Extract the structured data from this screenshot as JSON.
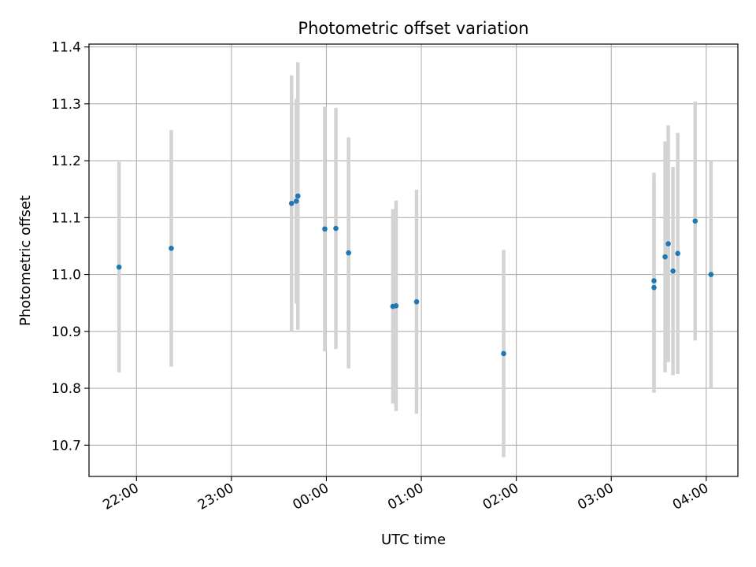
{
  "chart_data": {
    "type": "scatter",
    "title": "Photometric offset variation",
    "xlabel": "UTC time",
    "ylabel": "Photometric offset",
    "x_axis_kind": "time",
    "grid": true,
    "xlim": [
      "21:30",
      "04:20"
    ],
    "ylim": [
      10.645,
      11.405
    ],
    "x_ticks": [
      "22:00",
      "23:00",
      "00:00",
      "01:00",
      "02:00",
      "03:00",
      "04:00"
    ],
    "y_ticks": [
      "10.7",
      "10.8",
      "10.9",
      "11.0",
      "11.1",
      "11.2",
      "11.3",
      "11.4"
    ],
    "colors": {
      "point": "#1f77b4",
      "errorbar": "#d3d3d3",
      "grid": "#b0b0b0"
    },
    "series": [
      {
        "points": [
          {
            "x": "21:49",
            "y": 11.013,
            "yerr": 0.185
          },
          {
            "x": "22:22",
            "y": 11.046,
            "yerr": 0.208
          },
          {
            "x": "23:38",
            "y": 11.125,
            "yerr": 0.225
          },
          {
            "x": "23:41",
            "y": 11.129,
            "yerr": 0.18
          },
          {
            "x": "23:42",
            "y": 11.138,
            "yerr": 0.235
          },
          {
            "x": "23:59",
            "y": 11.08,
            "yerr": 0.215
          },
          {
            "x": "00:06",
            "y": 11.081,
            "yerr": 0.212
          },
          {
            "x": "00:14",
            "y": 11.038,
            "yerr": 0.203
          },
          {
            "x": "00:42",
            "y": 10.944,
            "yerr": 0.171
          },
          {
            "x": "00:44",
            "y": 10.945,
            "yerr": 0.185
          },
          {
            "x": "00:57",
            "y": 10.952,
            "yerr": 0.197
          },
          {
            "x": "01:52",
            "y": 10.861,
            "yerr": 0.182
          },
          {
            "x": "03:27",
            "y": 10.989,
            "yerr": 0.19
          },
          {
            "x": "03:27",
            "y": 10.977,
            "yerr": 0.185
          },
          {
            "x": "03:34",
            "y": 11.031,
            "yerr": 0.203
          },
          {
            "x": "03:36",
            "y": 11.054,
            "yerr": 0.208
          },
          {
            "x": "03:39",
            "y": 11.006,
            "yerr": 0.183
          },
          {
            "x": "03:42",
            "y": 11.037,
            "yerr": 0.212
          },
          {
            "x": "03:53",
            "y": 11.094,
            "yerr": 0.21
          },
          {
            "x": "04:03",
            "y": 11.0,
            "yerr": 0.2
          }
        ]
      }
    ]
  }
}
